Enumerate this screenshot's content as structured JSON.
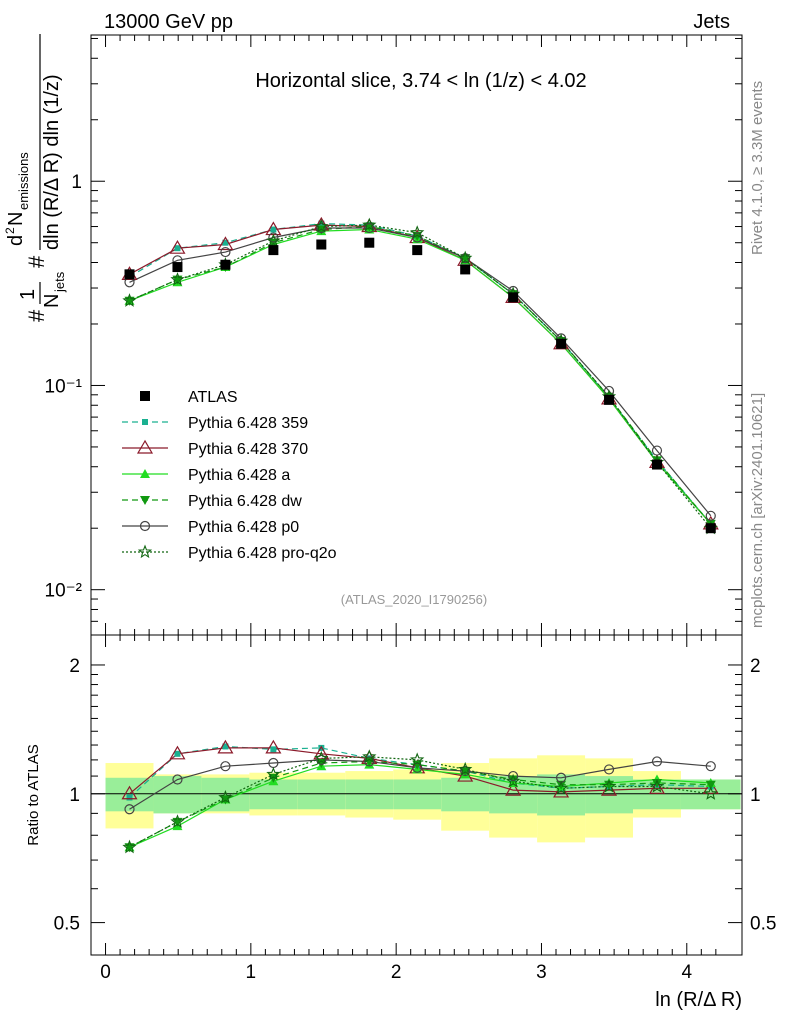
{
  "header": {
    "left": "13000 GeV pp",
    "right": "Jets"
  },
  "side_labels": {
    "rivet": "Rivet 4.1.0, ≥ 3.3M events",
    "mcplots": "mcplots.cern.ch [arXiv:2401.10621]"
  },
  "chart_data": [
    {
      "type": "line",
      "title": "Horizontal slice, 3.74 < ln (1/z) < 4.02",
      "watermark": "(ATLAS_2020_I1790256)",
      "y_scale": "log",
      "ylim": [
        0.006,
        5.2
      ],
      "xlim": [
        -0.1,
        4.38
      ],
      "ylabel": "1/N_jets dN_emissions / dln(R/ΔR) dln(1/z)",
      "y_ticks": [
        {
          "v": 0.01,
          "label": "10⁻²"
        },
        {
          "v": 0.1,
          "label": "10⁻¹"
        },
        {
          "v": 1,
          "label": "1"
        }
      ],
      "x": [
        0.165,
        0.495,
        0.825,
        1.155,
        1.485,
        1.815,
        2.145,
        2.475,
        2.805,
        3.135,
        3.465,
        3.795,
        4.165
      ],
      "data": {
        "name": "ATLAS",
        "values": [
          0.35,
          0.38,
          0.39,
          0.46,
          0.49,
          0.5,
          0.46,
          0.37,
          0.27,
          0.16,
          0.085,
          0.041,
          0.02
        ]
      },
      "series": [
        {
          "name": "Pythia 6.428 359",
          "color": "#1ab090",
          "dash": "6,4",
          "marker": "square-small",
          "values": [
            0.34,
            0.47,
            0.5,
            0.58,
            0.62,
            0.61,
            0.54,
            0.42,
            0.28,
            0.165,
            0.087,
            0.043,
            0.021
          ]
        },
        {
          "name": "Pythia 6.428 370",
          "color": "#8b1a2a",
          "dash": "",
          "marker": "triangle-open",
          "values": [
            0.35,
            0.47,
            0.49,
            0.58,
            0.61,
            0.6,
            0.53,
            0.41,
            0.27,
            0.16,
            0.086,
            0.042,
            0.021
          ]
        },
        {
          "name": "Pythia 6.428 a",
          "color": "#22dd22",
          "dash": "",
          "marker": "triangle-filled",
          "values": [
            0.26,
            0.32,
            0.38,
            0.49,
            0.57,
            0.58,
            0.52,
            0.41,
            0.27,
            0.16,
            0.086,
            0.042,
            0.021
          ]
        },
        {
          "name": "Pythia 6.428 dw",
          "color": "#119911",
          "dash": "6,4",
          "marker": "triangle-down",
          "values": [
            0.26,
            0.33,
            0.38,
            0.5,
            0.58,
            0.6,
            0.54,
            0.42,
            0.28,
            0.165,
            0.088,
            0.043,
            0.021
          ]
        },
        {
          "name": "Pythia 6.428 p0",
          "color": "#444444",
          "dash": "",
          "marker": "circle-open",
          "values": [
            0.32,
            0.41,
            0.45,
            0.53,
            0.59,
            0.59,
            0.53,
            0.42,
            0.29,
            0.17,
            0.094,
            0.048,
            0.023
          ]
        },
        {
          "name": "Pythia 6.428 pro-q2o",
          "color": "#116611",
          "dash": "2,2",
          "marker": "star-open",
          "values": [
            0.26,
            0.33,
            0.39,
            0.51,
            0.6,
            0.61,
            0.56,
            0.42,
            0.28,
            0.165,
            0.088,
            0.042,
            0.02
          ]
        }
      ]
    },
    {
      "type": "line",
      "ylabel": "Ratio to ATLAS",
      "xlabel": "ln (R/Δ R)",
      "y_scale": "log",
      "ylim": [
        0.42,
        2.35
      ],
      "y_ticks": [
        {
          "v": 0.5,
          "label": "0.5"
        },
        {
          "v": 1,
          "label": "1"
        },
        {
          "v": 2,
          "label": "2"
        }
      ],
      "x_ticks": [
        {
          "v": 0,
          "label": "0"
        },
        {
          "v": 1,
          "label": "1"
        },
        {
          "v": 2,
          "label": "2"
        },
        {
          "v": 3,
          "label": "3"
        },
        {
          "v": 4,
          "label": "4"
        }
      ],
      "bin_edges": [
        0.0,
        0.33,
        0.66,
        0.99,
        1.32,
        1.65,
        1.98,
        2.31,
        2.64,
        2.97,
        3.3,
        3.63,
        3.96,
        4.37
      ],
      "band_stat": {
        "lo": [
          0.91,
          0.9,
          0.91,
          0.92,
          0.92,
          0.92,
          0.92,
          0.91,
          0.9,
          0.89,
          0.9,
          0.92,
          0.92
        ],
        "hi": [
          1.09,
          1.1,
          1.09,
          1.08,
          1.08,
          1.08,
          1.08,
          1.09,
          1.1,
          1.11,
          1.1,
          1.08,
          1.08
        ]
      },
      "band_total": {
        "lo": [
          0.83,
          0.9,
          0.9,
          0.89,
          0.89,
          0.88,
          0.87,
          0.82,
          0.79,
          0.77,
          0.79,
          0.88,
          0.92
        ],
        "hi": [
          1.18,
          1.11,
          1.11,
          1.12,
          1.12,
          1.13,
          1.14,
          1.18,
          1.21,
          1.23,
          1.21,
          1.13,
          1.08
        ]
      },
      "series": [
        {
          "name": "Pythia 6.428 359",
          "values": [
            0.98,
            1.24,
            1.29,
            1.27,
            1.28,
            1.21,
            1.17,
            1.13,
            1.06,
            1.03,
            1.04,
            1.05,
            1.04
          ]
        },
        {
          "name": "Pythia 6.428 370",
          "values": [
            1.0,
            1.24,
            1.28,
            1.28,
            1.24,
            1.21,
            1.15,
            1.1,
            1.02,
            1.01,
            1.02,
            1.03,
            1.03
          ]
        },
        {
          "name": "Pythia 6.428 a",
          "values": [
            0.75,
            0.84,
            0.97,
            1.07,
            1.16,
            1.17,
            1.14,
            1.11,
            1.06,
            1.04,
            1.06,
            1.08,
            1.06
          ]
        },
        {
          "name": "Pythia 6.428 dw",
          "values": [
            0.75,
            0.86,
            0.97,
            1.09,
            1.18,
            1.19,
            1.17,
            1.13,
            1.08,
            1.05,
            1.05,
            1.06,
            1.05
          ]
        },
        {
          "name": "Pythia 6.428 p0",
          "values": [
            0.92,
            1.08,
            1.16,
            1.18,
            1.2,
            1.19,
            1.15,
            1.13,
            1.1,
            1.09,
            1.14,
            1.19,
            1.16
          ]
        },
        {
          "name": "Pythia 6.428 pro-q2o",
          "values": [
            0.75,
            0.86,
            0.98,
            1.11,
            1.21,
            1.22,
            1.2,
            1.14,
            1.07,
            1.03,
            1.04,
            1.04,
            1.0
          ]
        }
      ]
    }
  ]
}
